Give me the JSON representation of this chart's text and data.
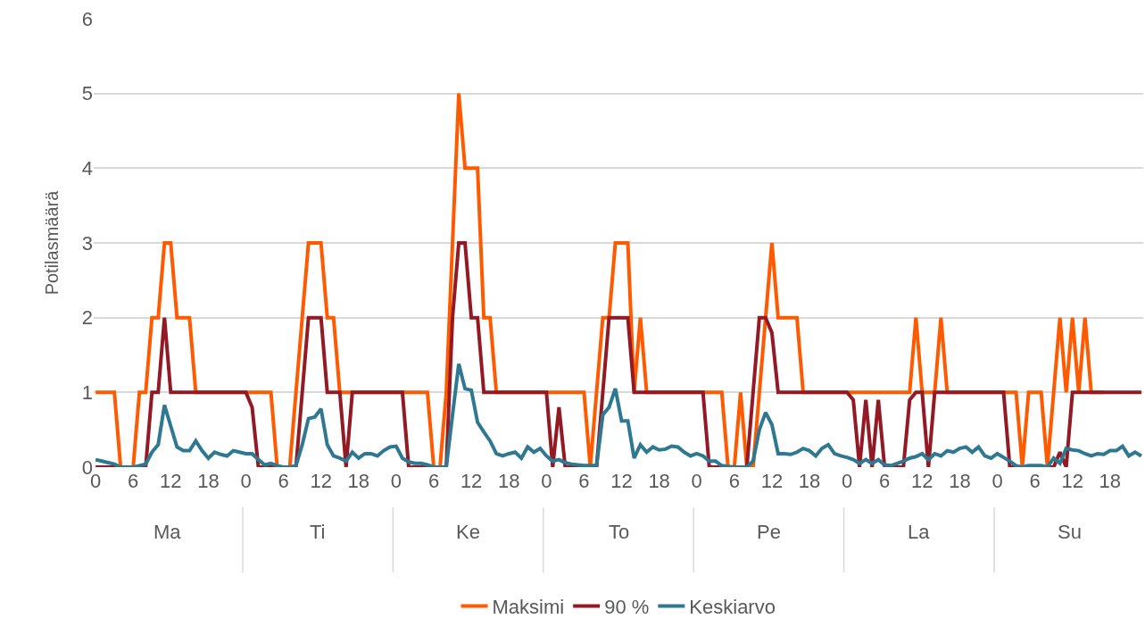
{
  "chart_data": {
    "type": "line",
    "ylabel": "Potilasmäärä",
    "categories": [
      "0",
      null,
      null,
      null,
      null,
      null,
      "6",
      null,
      null,
      null,
      null,
      null,
      "12",
      null,
      null,
      null,
      null,
      null,
      "18",
      null,
      null,
      null,
      null,
      null,
      "0",
      null,
      null,
      null,
      null,
      null,
      "6",
      null,
      null,
      null,
      null,
      null,
      "12",
      null,
      null,
      null,
      null,
      null,
      "18",
      null,
      null,
      null,
      null,
      null,
      "0",
      null,
      null,
      null,
      null,
      null,
      "6",
      null,
      null,
      null,
      null,
      null,
      "12",
      null,
      null,
      null,
      null,
      null,
      "18",
      null,
      null,
      null,
      null,
      null,
      "0",
      null,
      null,
      null,
      null,
      null,
      "6",
      null,
      null,
      null,
      null,
      null,
      "12",
      null,
      null,
      null,
      null,
      null,
      "18",
      null,
      null,
      null,
      null,
      null,
      "0",
      null,
      null,
      null,
      null,
      null,
      "6",
      null,
      null,
      null,
      null,
      null,
      "12",
      null,
      null,
      null,
      null,
      null,
      "18",
      null,
      null,
      null,
      null,
      null,
      "0",
      null,
      null,
      null,
      null,
      null,
      "6",
      null,
      null,
      null,
      null,
      null,
      "12",
      null,
      null,
      null,
      null,
      null,
      "18",
      null,
      null,
      null,
      null,
      null,
      "0",
      null,
      null,
      null,
      null,
      null,
      "6",
      null,
      null,
      null,
      null,
      null,
      "12",
      null,
      null,
      null,
      null,
      null,
      "18",
      null,
      null,
      null,
      null,
      null
    ],
    "annotations": [
      "Ma",
      "Ti",
      "Ke",
      "To",
      "Pe",
      "La",
      "Su"
    ],
    "series": [
      {
        "name": "Maksimi",
        "color": "#ff5a00",
        "values": [
          1,
          1,
          1,
          1,
          0,
          0,
          0,
          1,
          1,
          2,
          2,
          3,
          3,
          2,
          2,
          2,
          1,
          1,
          1,
          1,
          1,
          1,
          1,
          1,
          1,
          1,
          1,
          1,
          1,
          0,
          0,
          0,
          1,
          2,
          3,
          3,
          3,
          2,
          2,
          1,
          1,
          1,
          1,
          1,
          1,
          1,
          1,
          1,
          1,
          1,
          1,
          1,
          1,
          1,
          0,
          0,
          1,
          3,
          5,
          4,
          4,
          4,
          2,
          2,
          1,
          1,
          1,
          1,
          1,
          1,
          1,
          1,
          1,
          1,
          1,
          1,
          1,
          1,
          1,
          0,
          1,
          2,
          2,
          3,
          3,
          3,
          1,
          2,
          1,
          1,
          1,
          1,
          1,
          1,
          1,
          1,
          1,
          1,
          1,
          1,
          1,
          0,
          0,
          1,
          0,
          0,
          1,
          2,
          3,
          2,
          2,
          2,
          2,
          1,
          1,
          1,
          1,
          1,
          1,
          1,
          1,
          1,
          1,
          1,
          1,
          1,
          1,
          1,
          1,
          1,
          1,
          2,
          1,
          1,
          1,
          2,
          1,
          1,
          1,
          1,
          1,
          1,
          1,
          1,
          1,
          1,
          1,
          1,
          0,
          1,
          1,
          1,
          0,
          1,
          2,
          1,
          2,
          1,
          2,
          1,
          1,
          1,
          null,
          null,
          null,
          null,
          null,
          null
        ]
      },
      {
        "name": "90 %",
        "color": "#931a24",
        "values": [
          0,
          0,
          0,
          0,
          0,
          0,
          0,
          0,
          0,
          1,
          1,
          2,
          1,
          1,
          1,
          1,
          1,
          1,
          1,
          1,
          1,
          1,
          1,
          1,
          1,
          0.8,
          0,
          0,
          0,
          0,
          0,
          0,
          0,
          1,
          2,
          2,
          2,
          1,
          1,
          1,
          0,
          1,
          1,
          1,
          1,
          1,
          1,
          1,
          1,
          1,
          0,
          0,
          0,
          0,
          0,
          0,
          0,
          2,
          3,
          3,
          2,
          2,
          1,
          1,
          1,
          1,
          1,
          1,
          1,
          1,
          1,
          1,
          1,
          0,
          0.8,
          0,
          0,
          0,
          0,
          0,
          0,
          1,
          2,
          2,
          2,
          2,
          1,
          1,
          1,
          1,
          1,
          1,
          1,
          1,
          1,
          1,
          1,
          1,
          0,
          0,
          0,
          0,
          0,
          0,
          0,
          1,
          2,
          2,
          1.8,
          1,
          1,
          1,
          1,
          1,
          1,
          1,
          1,
          1,
          1,
          1,
          1,
          0.9,
          0,
          0.9,
          0,
          0.9,
          0,
          0,
          0,
          0,
          0.9,
          1,
          1,
          0,
          1,
          1,
          1,
          1,
          1,
          1,
          1,
          1,
          1,
          1,
          1,
          1,
          0,
          0,
          0,
          0,
          0,
          0,
          0,
          0,
          0.2,
          0,
          1,
          1,
          1,
          1,
          1,
          1,
          1,
          1,
          1,
          1,
          1,
          1
        ]
      },
      {
        "name": "Keskiarvo",
        "color": "#2e7891",
        "values": [
          0.1,
          0.08,
          0.06,
          0.04,
          0,
          0,
          0,
          0.02,
          0.04,
          0.2,
          0.3,
          0.83,
          0.55,
          0.27,
          0.22,
          0.22,
          0.35,
          0.22,
          0.12,
          0.2,
          0.17,
          0.15,
          0.22,
          0.2,
          0.18,
          0.18,
          0.1,
          0.03,
          0.05,
          0.02,
          0,
          0,
          0.02,
          0.3,
          0.65,
          0.67,
          0.78,
          0.3,
          0.15,
          0.12,
          0.08,
          0.2,
          0.12,
          0.18,
          0.18,
          0.15,
          0.22,
          0.27,
          0.28,
          0.12,
          0.07,
          0.05,
          0.05,
          0.03,
          0,
          0,
          0,
          0.7,
          1.38,
          1.05,
          1.03,
          0.6,
          0.47,
          0.35,
          0.18,
          0.15,
          0.18,
          0.2,
          0.12,
          0.27,
          0.2,
          0.25,
          0.15,
          0.08,
          0.1,
          0.06,
          0.04,
          0.03,
          0.02,
          0.02,
          0.02,
          0.7,
          0.8,
          1.05,
          0.62,
          0.62,
          0.12,
          0.3,
          0.2,
          0.27,
          0.23,
          0.24,
          0.28,
          0.27,
          0.2,
          0.15,
          0.18,
          0.15,
          0.08,
          0.08,
          0.02,
          0.01,
          0,
          0,
          0,
          0.08,
          0.5,
          0.73,
          0.57,
          0.18,
          0.18,
          0.17,
          0.2,
          0.25,
          0.22,
          0.15,
          0.25,
          0.3,
          0.18,
          0.15,
          0.13,
          0.1,
          0.05,
          0.1,
          0.05,
          0.1,
          0.03,
          0.02,
          0.05,
          0.08,
          0.12,
          0.14,
          0.18,
          0.1,
          0.18,
          0.15,
          0.22,
          0.2,
          0.25,
          0.27,
          0.2,
          0.27,
          0.15,
          0.12,
          0.18,
          0.13,
          0.08,
          0.02,
          0,
          0.02,
          0.02,
          0.02,
          0,
          0.12,
          0.05,
          0.25,
          0.23,
          0.22,
          0.18,
          0.15,
          0.18,
          0.17,
          0.22,
          0.22,
          0.28,
          0.15,
          0.2,
          0.15
        ]
      }
    ],
    "ylim": [
      0,
      6
    ],
    "yticks": [
      0,
      1,
      2,
      3,
      4,
      5,
      6
    ],
    "grid": "y",
    "legend": "bottom",
    "line_style": "solid",
    "marker": "none"
  }
}
